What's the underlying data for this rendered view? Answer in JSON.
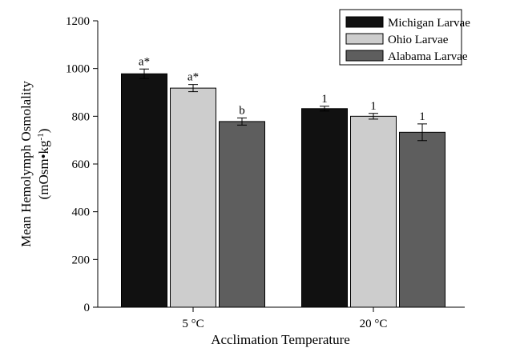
{
  "chart_data": {
    "type": "bar",
    "categories": [
      "5 °C",
      "20 °C"
    ],
    "series": [
      {
        "name": "Michigan Larvae",
        "color": "#111111",
        "values": [
          978,
          832
        ],
        "errors": [
          20,
          10
        ],
        "annotations": [
          "a*",
          "1"
        ]
      },
      {
        "name": "Ohio Larvae",
        "color": "#cdcdcd",
        "values": [
          918,
          800
        ],
        "errors": [
          15,
          12
        ],
        "annotations": [
          "a*",
          "1"
        ]
      },
      {
        "name": "Alabama Larvae",
        "color": "#5e5e5e",
        "values": [
          778,
          733
        ],
        "errors": [
          15,
          35
        ],
        "annotations": [
          "b",
          "1"
        ]
      }
    ],
    "xlabel": "Acclimation Temperature",
    "ylabel_line1": "Mean Hemolymph Osmolality",
    "ylabel_line2_parts": [
      "(mOsm",
      "•",
      "kg",
      "-1",
      ")"
    ],
    "ylim": [
      0,
      1200
    ],
    "yticks": [
      0,
      200,
      400,
      600,
      800,
      1000,
      1200
    ],
    "legend_position": "top-right",
    "grid": false
  }
}
